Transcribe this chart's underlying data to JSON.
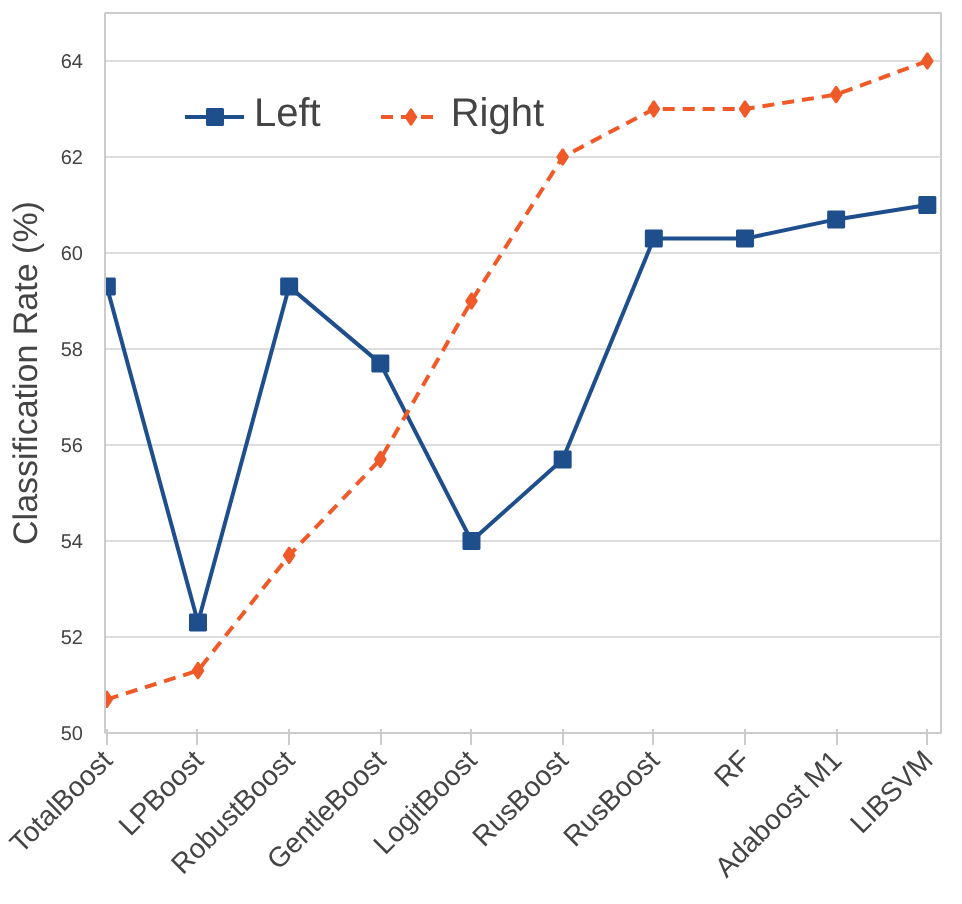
{
  "chart_data": {
    "type": "line",
    "ylabel": "Classification Rate (%)",
    "categories": [
      "TotalBoost",
      "LPBoost",
      "RobustBoost",
      "GentleBoost",
      "LogitBoost",
      "RusBoost",
      "RusBoost",
      "RF",
      "Adaboost M1",
      "LIBSVM"
    ],
    "series": [
      {
        "name": "Left",
        "color": "#1f4e8c",
        "marker": "square",
        "line_style": "solid",
        "values": [
          59.3,
          52.3,
          59.3,
          57.7,
          54.0,
          55.7,
          60.3,
          60.3,
          60.7,
          61.0
        ]
      },
      {
        "name": "Right",
        "color": "#f05a28",
        "marker": "diamond",
        "line_style": "dashed",
        "values": [
          50.7,
          51.3,
          53.7,
          55.7,
          59.0,
          62.0,
          63.0,
          63.0,
          63.3,
          64.0
        ]
      }
    ],
    "ylim": [
      50,
      65
    ],
    "yticks": [
      50,
      52,
      54,
      56,
      58,
      60,
      62,
      64
    ],
    "grid": "y",
    "legend": "top left"
  }
}
